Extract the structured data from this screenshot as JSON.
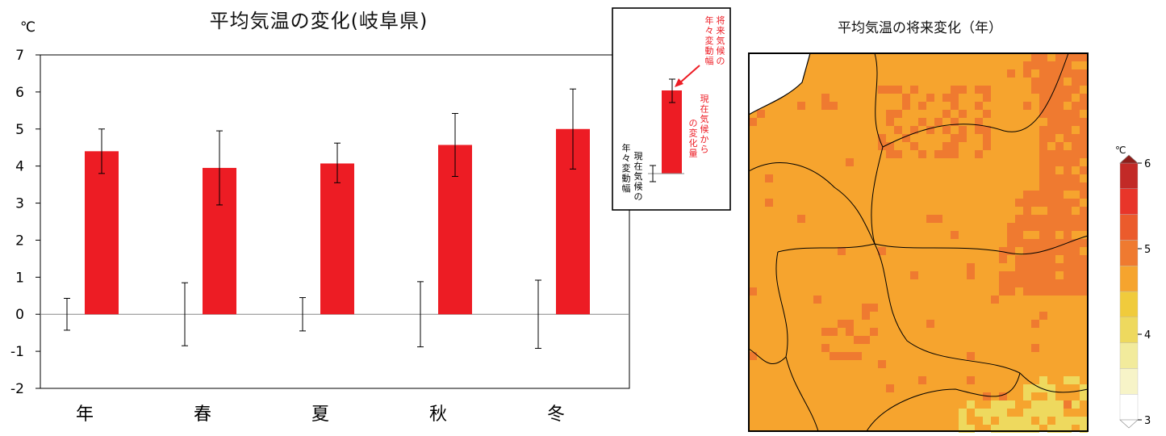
{
  "chart_data": [
    {
      "type": "bar",
      "title": "平均気温の変化(岐阜県)",
      "ylabel": "℃",
      "ylim": [
        -2,
        7
      ],
      "yticks": [
        "-2",
        "-1",
        "0",
        "1",
        "2",
        "3",
        "4",
        "5",
        "6",
        "7"
      ],
      "categories": [
        "年",
        "春",
        "夏",
        "秋",
        "冬"
      ],
      "series": [
        {
          "values": [
            4.4,
            3.95,
            4.07,
            4.57,
            5.0
          ],
          "error_low": [
            3.8,
            2.95,
            3.55,
            3.72,
            3.92
          ],
          "error_high": [
            5.0,
            4.95,
            4.62,
            5.42,
            6.08
          ],
          "color": "#ed1c24"
        }
      ],
      "current_variability": [
        {
          "low": -0.43,
          "high": 0.43
        },
        {
          "low": -0.85,
          "high": 0.85
        },
        {
          "low": -0.45,
          "high": 0.45
        },
        {
          "low": -0.88,
          "high": 0.88
        },
        {
          "low": -0.92,
          "high": 0.92
        }
      ],
      "grid": false,
      "legend": {
        "future_variability_label": "将来気候の年々変動幅",
        "change_label": "現在気候からの変化量",
        "current_variability_label": "現在気候の年々変動幅"
      }
    },
    {
      "type": "heatmap",
      "title": "平均気温の将来変化（年）",
      "colorbar": {
        "unit": "℃",
        "min": 3,
        "max": 6,
        "ticks": [
          "3",
          "4",
          "5",
          "6"
        ],
        "colors": [
          "#ffffff",
          "#f7f4c8",
          "#f2eb9c",
          "#eed95e",
          "#f0cb3c",
          "#f6a42e",
          "#ef7a30",
          "#eb5b2c",
          "#e8352a",
          "#c22a27",
          "#8e1e1a"
        ]
      }
    }
  ],
  "colors": {
    "bar": "#ed1c24",
    "axis": "#555555",
    "frame": "#000000",
    "error": "#000000"
  }
}
